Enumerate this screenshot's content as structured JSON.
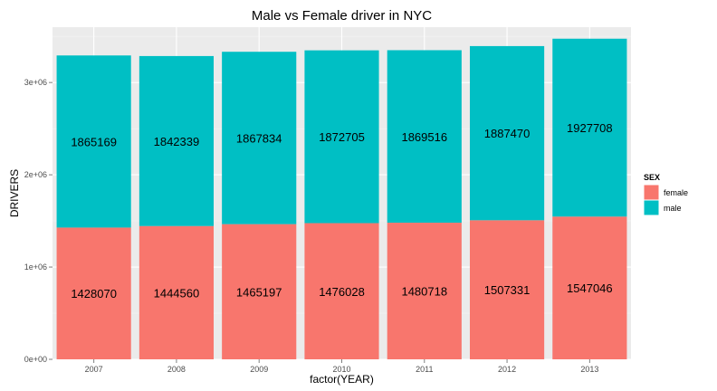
{
  "chart_data": {
    "type": "bar",
    "stacked": true,
    "title": "Male vs Female driver in NYC",
    "xlabel": "factor(YEAR)",
    "ylabel": "DRIVERS",
    "categories": [
      "2007",
      "2008",
      "2009",
      "2010",
      "2011",
      "2012",
      "2013"
    ],
    "series": [
      {
        "name": "female",
        "color": "#F8766D",
        "values": [
          1428070,
          1444560,
          1465197,
          1476028,
          1480718,
          1507331,
          1547046
        ]
      },
      {
        "name": "male",
        "color": "#00BFC4",
        "values": [
          1865169,
          1842339,
          1867834,
          1872705,
          1869516,
          1887470,
          1927708
        ]
      }
    ],
    "ylim": [
      0,
      3600000
    ],
    "yticks": [
      0,
      1000000,
      2000000,
      3000000
    ],
    "ytick_labels": [
      "0e+00",
      "1e+06",
      "2e+06",
      "3e+06"
    ],
    "legend": {
      "title": "SEX",
      "position": "right"
    },
    "grid": true,
    "panel_background": "#EBEBEB"
  }
}
